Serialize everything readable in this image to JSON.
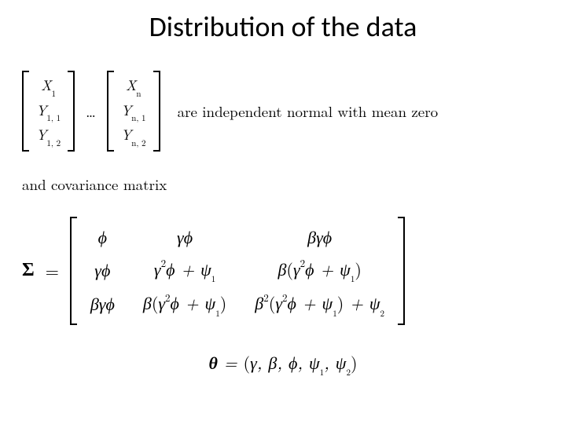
{
  "title": "Distribution of the data",
  "vectors": {
    "v1": [
      "X₁",
      "Y₁,₁",
      "Y₁,₂"
    ],
    "ellipsis": "…",
    "vn": [
      "Xₙ",
      "Yₙ,₁",
      "Yₙ,₂"
    ],
    "tail_text": "are independent normal with mean zero"
  },
  "line2": "and covariance matrix",
  "sigma": {
    "label": "Σ",
    "eq": "=",
    "rows": [
      [
        "φ",
        "γφ",
        "βγφ"
      ],
      [
        "γφ",
        "γ²φ + ψ₁",
        "β(γ²φ + ψ₁)"
      ],
      [
        "βγφ",
        "β(γ²φ + ψ₁)",
        "β²(γ²φ + ψ₁) + ψ₂"
      ]
    ]
  },
  "theta": {
    "label": "θ",
    "eq": " = ",
    "params": "(γ, β, φ, ψ₁, ψ₂)"
  },
  "style": {
    "background": "#ffffff",
    "text_color": "#000000",
    "title_fontsize": 36,
    "body_fontsize": 19,
    "matrix_fontsize": 22
  }
}
